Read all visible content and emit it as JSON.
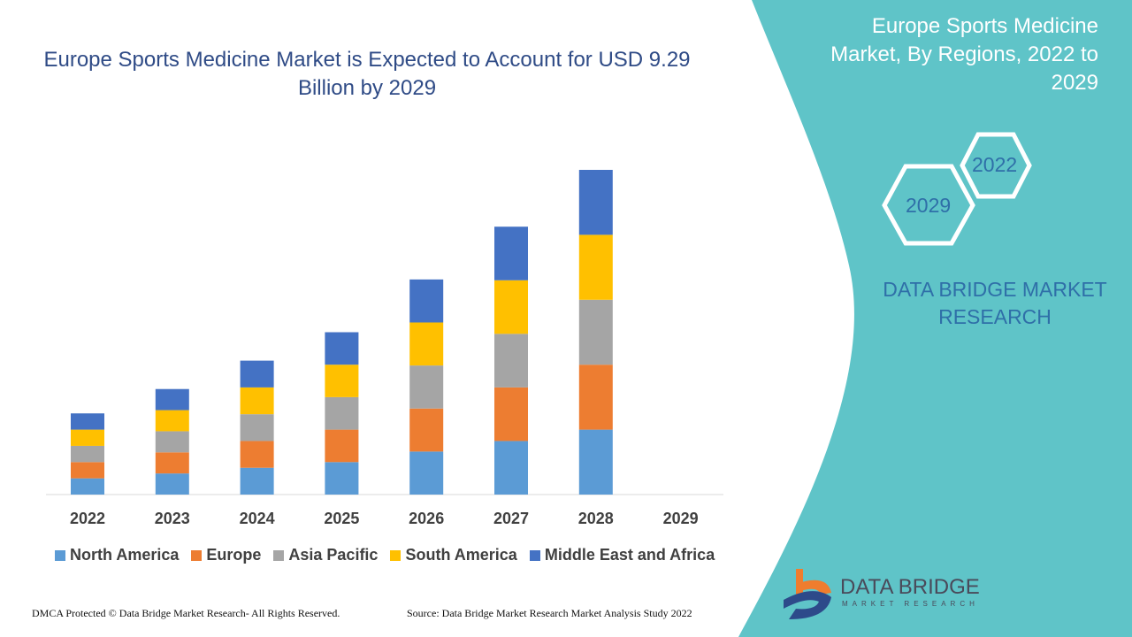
{
  "title": "Europe Sports Medicine Market is Expected to Account for USD 9.29 Billion by 2029",
  "side_panel": {
    "title": "Europe Sports Medicine Market, By Regions, 2022 to 2029",
    "hex_years": [
      "2022",
      "2029"
    ],
    "brand": "DATA BRIDGE MARKET RESEARCH",
    "background_color": "#5fc4c8"
  },
  "logo": {
    "name": "DATA BRIDGE",
    "tagline": "MARKET RESEARCH"
  },
  "footer": {
    "copyright": "DMCA Protected © Data Bridge Market Research- All Rights Reserved.",
    "source": "Source: Data Bridge Market Research Market Analysis Study 2022"
  },
  "chart_data": {
    "type": "bar",
    "stacked": true,
    "title": "Europe Sports Medicine Market is Expected to Account for USD 9.29 Billion by 2029",
    "categories": [
      "2022",
      "2023",
      "2024",
      "2025",
      "2026",
      "2027",
      "2028",
      "2029"
    ],
    "value_note_units": "relative (no value axis shown)",
    "series": [
      {
        "name": "North America",
        "color": "#5b9bd5",
        "values": [
          1.0,
          1.3,
          1.65,
          2.0,
          2.65,
          3.3,
          4.0,
          0
        ]
      },
      {
        "name": "Europe",
        "color": "#ed7d31",
        "values": [
          1.0,
          1.3,
          1.65,
          2.0,
          2.65,
          3.3,
          4.0,
          0
        ]
      },
      {
        "name": "Asia Pacific",
        "color": "#a5a5a5",
        "values": [
          1.0,
          1.3,
          1.65,
          2.0,
          2.65,
          3.3,
          4.0,
          0
        ]
      },
      {
        "name": "South America",
        "color": "#ffc000",
        "values": [
          1.0,
          1.3,
          1.65,
          2.0,
          2.65,
          3.3,
          4.0,
          0
        ]
      },
      {
        "name": "Middle East and Africa",
        "color": "#4472c4",
        "values": [
          1.0,
          1.3,
          1.65,
          2.0,
          2.65,
          3.3,
          4.0,
          0
        ]
      }
    ],
    "ylim": [
      0,
      20
    ],
    "grid": false,
    "y_axis_visible": false,
    "legend_position": "bottom"
  }
}
